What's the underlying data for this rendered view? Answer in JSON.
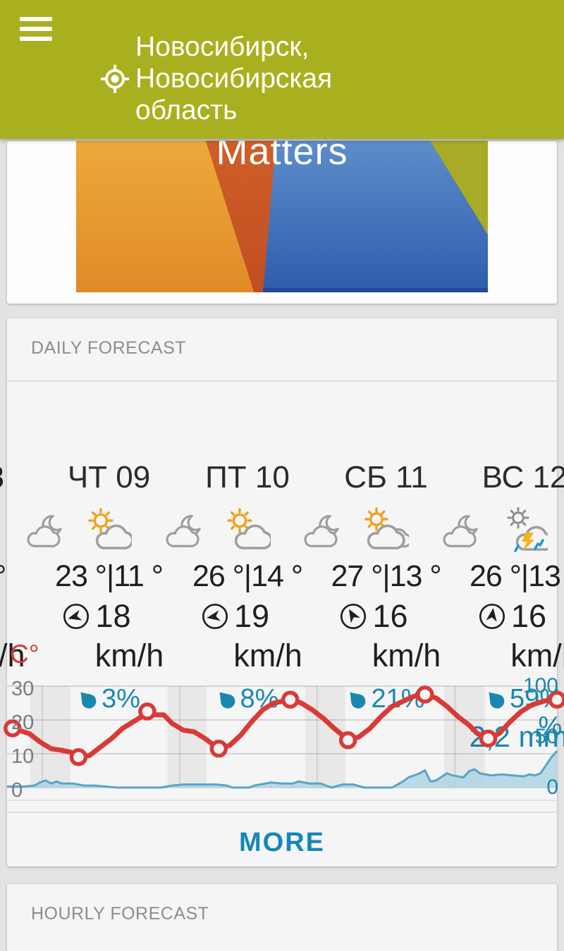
{
  "colors": {
    "header_bg": "#a9b01f",
    "accent_blue": "#1787b8",
    "temp_red": "#da3a35",
    "precip_fill": "#aed3e4",
    "precip_line": "#57a5c8",
    "icon_gray": "#9e9e9e",
    "sun_orange": "#f0a11c"
  },
  "header": {
    "menu_icon": "menu-icon",
    "search_icon": "search-icon",
    "my_location_icon": "my-location-icon",
    "settings_icon": "settings-icon",
    "title_line1": "Новосибирск,",
    "title_line2": "Новосибирская",
    "title_line3": "область"
  },
  "ad": {
    "text": "Matters"
  },
  "daily": {
    "title": "DAILY FORECAST",
    "more_label": "MORE",
    "edge_fragments": {
      "label": "8",
      "temp": "°",
      "wind": "/h"
    },
    "days": [
      {
        "label": "ЧТ 09",
        "night_icon": "moon-cloud",
        "day_icon": "sun-cloud",
        "temps": "23 °|11 °",
        "wind_speed": "18",
        "wind_unit": "km/h",
        "wind_dir_deg": -105,
        "pop": "3%"
      },
      {
        "label": "ПТ 10",
        "night_icon": "moon-cloud",
        "day_icon": "sun-cloud",
        "temps": "26 °|14 °",
        "wind_speed": "19",
        "wind_unit": "km/h",
        "wind_dir_deg": -100,
        "pop": "8%"
      },
      {
        "label": "СБ 11",
        "night_icon": "moon-cloud",
        "day_icon": "sun-clouds",
        "temps": "27 °|13 °",
        "wind_speed": "16",
        "wind_unit": "km/h",
        "wind_dir_deg": -30,
        "pop": "21%"
      },
      {
        "label": "ВС 12",
        "night_icon": "moon-cloud",
        "day_icon": "storm-rain",
        "temps": "26 °|13 °",
        "wind_speed": "16",
        "wind_unit": "km/h",
        "wind_dir_deg": 8,
        "pop": "59%",
        "pop_wrap": "%",
        "precip_amount": "2,2 mm"
      }
    ]
  },
  "hourly": {
    "title": "HOURLY FORECAST"
  },
  "chart_data": {
    "type": "line+area",
    "left_axis": {
      "label": "C°",
      "ticks": [
        30,
        20,
        10,
        0
      ],
      "range": [
        0,
        30
      ]
    },
    "right_axis": {
      "ticks": [
        100,
        50,
        0
      ],
      "range": [
        0,
        100
      ],
      "annotation": "2,2 mm"
    },
    "night_bands": [
      [
        4.2,
        11.5
      ],
      [
        29.2,
        36.3
      ],
      [
        54.2,
        61.5
      ],
      [
        79.5,
        86.9
      ]
    ],
    "midnight_lines": [
      6.4,
      31.4,
      56.4,
      81.5
    ],
    "series": [
      {
        "name": "temperature",
        "type": "line",
        "color": "#da3a35",
        "axis": "left",
        "points": [
          [
            0,
            18.5
          ],
          [
            1,
            17.5
          ],
          [
            4,
            16
          ],
          [
            6,
            13.5
          ],
          [
            8,
            11.5
          ],
          [
            10,
            11
          ],
          [
            11.5,
            10.5
          ],
          [
            13,
            9
          ],
          [
            15,
            9.5
          ],
          [
            17,
            12
          ],
          [
            19,
            14.5
          ],
          [
            21,
            17.5
          ],
          [
            23,
            19.5
          ],
          [
            24.5,
            21
          ],
          [
            25.5,
            22.5
          ],
          [
            27,
            21.5
          ],
          [
            28.5,
            21.5
          ],
          [
            30,
            19
          ],
          [
            32,
            17
          ],
          [
            34,
            16.5
          ],
          [
            36,
            14.5
          ],
          [
            38.5,
            11.5
          ],
          [
            40.5,
            12.5
          ],
          [
            42.5,
            15.5
          ],
          [
            44.5,
            19.5
          ],
          [
            46.5,
            23
          ],
          [
            48.5,
            25
          ],
          [
            50,
            25.5
          ],
          [
            51.5,
            26
          ],
          [
            53.5,
            25
          ],
          [
            55.5,
            23
          ],
          [
            57.5,
            20.5
          ],
          [
            59.5,
            17.5
          ],
          [
            61,
            15.5
          ],
          [
            62,
            14
          ],
          [
            64,
            15
          ],
          [
            66,
            17.5
          ],
          [
            68,
            21
          ],
          [
            70,
            24
          ],
          [
            72,
            25.5
          ],
          [
            74,
            27
          ],
          [
            76,
            27.5
          ],
          [
            78,
            26.5
          ],
          [
            80,
            24
          ],
          [
            82,
            21
          ],
          [
            84,
            18.5
          ],
          [
            85.5,
            16
          ],
          [
            87.5,
            14.5
          ],
          [
            89.5,
            16
          ],
          [
            91.5,
            19.5
          ],
          [
            93.5,
            22.5
          ],
          [
            95.5,
            24.5
          ],
          [
            97.5,
            25.5
          ],
          [
            99,
            26
          ],
          [
            100,
            26
          ]
        ],
        "markers": [
          [
            1,
            17.5
          ],
          [
            13,
            9
          ],
          [
            25.5,
            22.5
          ],
          [
            38.5,
            11.5
          ],
          [
            51.5,
            26
          ],
          [
            62,
            14
          ],
          [
            76,
            27.5
          ],
          [
            87.5,
            14.5
          ],
          [
            100,
            26
          ]
        ]
      },
      {
        "name": "precipitation",
        "type": "area",
        "fill": "#aed3e4",
        "line": "#57a5c8",
        "axis": "right",
        "points": [
          [
            0,
            1
          ],
          [
            3,
            1
          ],
          [
            5,
            2
          ],
          [
            6,
            5
          ],
          [
            7,
            7
          ],
          [
            8,
            4
          ],
          [
            9,
            6
          ],
          [
            10,
            4
          ],
          [
            12,
            4
          ],
          [
            14,
            2
          ],
          [
            16,
            2
          ],
          [
            18,
            1
          ],
          [
            20,
            0
          ],
          [
            28,
            0
          ],
          [
            30,
            2
          ],
          [
            32,
            3
          ],
          [
            35,
            3
          ],
          [
            38,
            3
          ],
          [
            40,
            2
          ],
          [
            41,
            0
          ],
          [
            44,
            0
          ],
          [
            45,
            2
          ],
          [
            47,
            4
          ],
          [
            48,
            5
          ],
          [
            50,
            4
          ],
          [
            52,
            4
          ],
          [
            53,
            6
          ],
          [
            55,
            4
          ],
          [
            57,
            4
          ],
          [
            58,
            2
          ],
          [
            59,
            0
          ],
          [
            61,
            3
          ],
          [
            63,
            3
          ],
          [
            65,
            0
          ],
          [
            70,
            0
          ],
          [
            72,
            6
          ],
          [
            73,
            10
          ],
          [
            74,
            12
          ],
          [
            75,
            14
          ],
          [
            76,
            17
          ],
          [
            77,
            6
          ],
          [
            78,
            7
          ],
          [
            80,
            14
          ],
          [
            81,
            12
          ],
          [
            83,
            10
          ],
          [
            84,
            16
          ],
          [
            85,
            18
          ],
          [
            86,
            14
          ],
          [
            88,
            12
          ],
          [
            90,
            13
          ],
          [
            92,
            12
          ],
          [
            94,
            11
          ],
          [
            95,
            13
          ],
          [
            96,
            12
          ],
          [
            97,
            14
          ],
          [
            98,
            22
          ],
          [
            99,
            30
          ],
          [
            100,
            36
          ]
        ]
      }
    ]
  }
}
